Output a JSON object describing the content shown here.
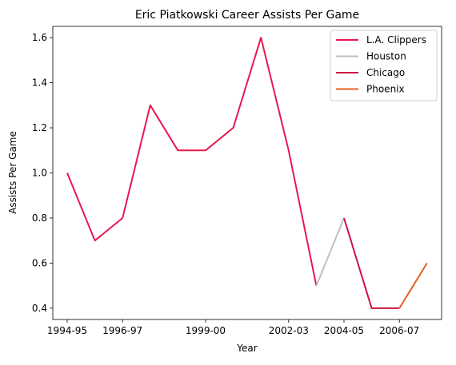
{
  "chart_data": {
    "type": "line",
    "title": "Eric Piatkowski Career Assists Per Game",
    "xlabel": "Year",
    "ylabel": "Assists Per Game",
    "x_categories": [
      "1994-95",
      "1995-96",
      "1996-97",
      "1997-98",
      "1998-99",
      "1999-00",
      "2000-01",
      "2001-02",
      "2002-03",
      "2003-04",
      "2004-05",
      "2005-06",
      "2006-07",
      "2007-08"
    ],
    "x_tick_labels": [
      "1994-95",
      "1996-97",
      "1999-00",
      "2002-03",
      "2004-05",
      "2006-07"
    ],
    "y_ticks": [
      "0.4",
      "0.6",
      "0.8",
      "1.0",
      "1.2",
      "1.4",
      "1.6"
    ],
    "ylim": [
      0.35,
      1.65
    ],
    "grid": false,
    "legend_position": "top-right",
    "series": [
      {
        "name": "L.A. Clippers",
        "color": "#e8174f",
        "x": [
          "1994-95",
          "1995-96",
          "1996-97",
          "1997-98",
          "1998-99",
          "1999-00",
          "2000-01",
          "2001-02",
          "2002-03",
          "2003-04"
        ],
        "values": [
          1.0,
          0.7,
          0.8,
          1.3,
          1.1,
          1.1,
          1.2,
          1.6,
          1.1,
          0.5
        ]
      },
      {
        "name": "Houston",
        "color": "#c0c0c0",
        "x": [
          "2003-04",
          "2004-05"
        ],
        "values": [
          0.5,
          0.8
        ]
      },
      {
        "name": "Chicago",
        "color": "#ce1141",
        "x": [
          "2004-05",
          "2005-06",
          "2006-07"
        ],
        "values": [
          0.8,
          0.4,
          0.4
        ]
      },
      {
        "name": "Phoenix",
        "color": "#e56020",
        "x": [
          "2006-07",
          "2007-08"
        ],
        "values": [
          0.4,
          0.6
        ]
      }
    ]
  }
}
